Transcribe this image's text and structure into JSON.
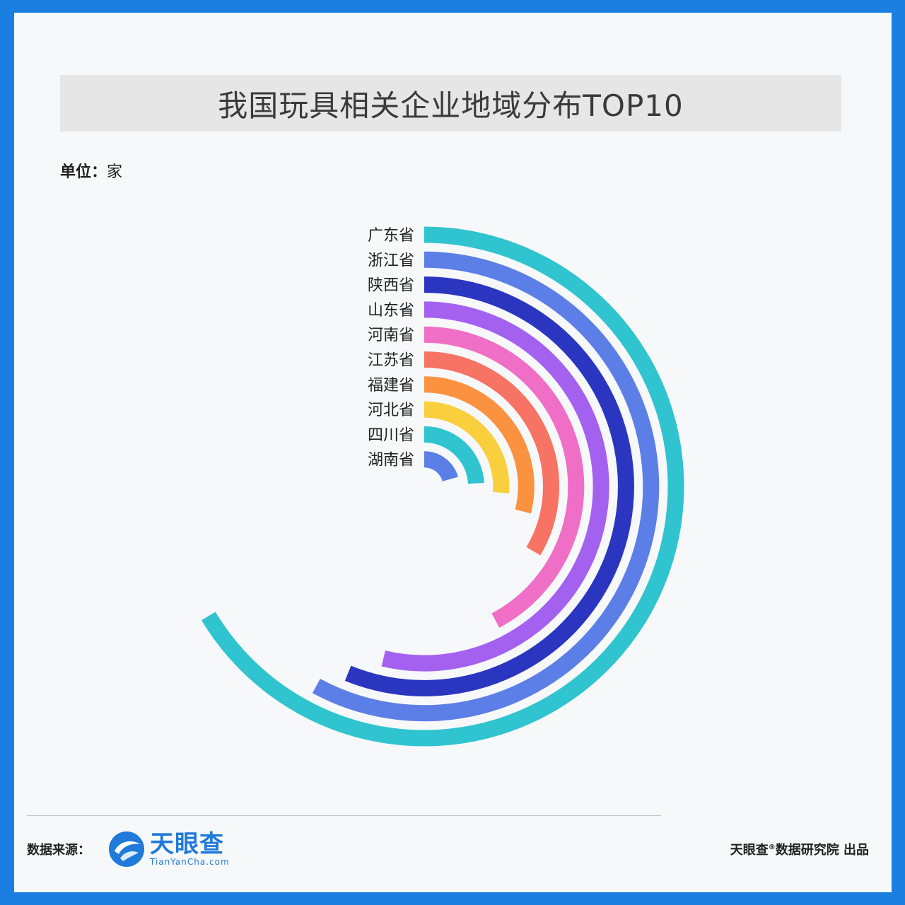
{
  "title": "我国玩具相关企业地域分布TOP10",
  "unit_label": "单位：",
  "unit_value": "家",
  "footer": {
    "source_label": "数据来源：",
    "logo_cn": "天眼查",
    "logo_en": "TianYanCha.com",
    "credit_brand": "天眼查",
    "credit_mark": "®",
    "credit_rest": "数据研究院 出品"
  },
  "colors": {
    "background_border": "#1a7fe0",
    "logo": "#1f7ad9"
  },
  "chart_data": {
    "type": "radial-bar",
    "title": "我国玩具相关企业地域分布TOP10",
    "unit": "家",
    "value_scale": "relative (no values printed; angular sweep as fraction of the longest bar)",
    "categories": [
      "广东省",
      "浙江省",
      "陕西省",
      "山东省",
      "河南省",
      "江苏省",
      "福建省",
      "河北省",
      "四川省",
      "湖南省"
    ],
    "values": [
      1.0,
      0.872,
      0.846,
      0.809,
      0.636,
      0.505,
      0.436,
      0.396,
      0.362,
      0.311
    ],
    "colors": [
      "#2fc4cf",
      "#5b7fe6",
      "#2a35c0",
      "#a461f0",
      "#ef6fc7",
      "#f77363",
      "#fb9240",
      "#f9cf3e",
      "#2fc4cf",
      "#5b7fe6"
    ]
  }
}
